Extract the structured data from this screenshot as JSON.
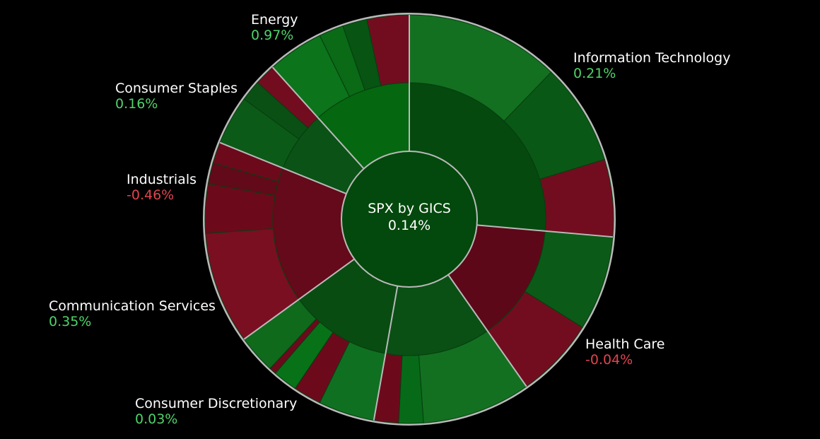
{
  "colors": {
    "background": "#000000",
    "border": "#b9b9b9",
    "positive_label": "#4fd36a",
    "negative_label": "#e0434f",
    "text": "#ffffff"
  },
  "chart_data": {
    "type": "sunburst",
    "center": {
      "label": "SPX by GICS",
      "value": "0.14%"
    },
    "sectors": [
      {
        "name": "Information Technology",
        "change": "0.21%",
        "direction": "up",
        "start_deg": 0,
        "end_deg": 95,
        "inner_color": "#05490f",
        "children": [
          {
            "start_deg": 0,
            "end_deg": 44,
            "color": "#137020"
          },
          {
            "start_deg": 44,
            "end_deg": 73,
            "color": "#0a5815"
          },
          {
            "start_deg": 73,
            "end_deg": 95,
            "color": "#720d1f"
          }
        ]
      },
      {
        "name": "Health Care",
        "change": "-0.04%",
        "direction": "down",
        "start_deg": 95,
        "end_deg": 145,
        "inner_color": "#5c0818",
        "children": [
          {
            "start_deg": 95,
            "end_deg": 122,
            "color": "#0c5a17"
          },
          {
            "start_deg": 122,
            "end_deg": 145,
            "color": "#720d1f"
          }
        ]
      },
      {
        "name": "Consumer Discretionary",
        "change": "0.03%",
        "direction": "up",
        "start_deg": 145,
        "end_deg": 190,
        "inner_color": "#0a5014",
        "children": [
          {
            "start_deg": 145,
            "end_deg": 176,
            "color": "#137020"
          },
          {
            "start_deg": 176,
            "end_deg": 183,
            "color": "#076a18"
          },
          {
            "start_deg": 183,
            "end_deg": 190,
            "color": "#6c0a1c"
          }
        ]
      },
      {
        "name": "Communication Services",
        "change": "0.35%",
        "direction": "up",
        "start_deg": 190,
        "end_deg": 234,
        "inner_color": "#084c11",
        "children": [
          {
            "start_deg": 190,
            "end_deg": 206,
            "color": "#107021"
          },
          {
            "start_deg": 206,
            "end_deg": 214,
            "color": "#6c0a1c"
          },
          {
            "start_deg": 214,
            "end_deg": 221,
            "color": "#087218"
          },
          {
            "start_deg": 221,
            "end_deg": 223,
            "color": "#6c0a1c"
          },
          {
            "start_deg": 223,
            "end_deg": 234,
            "color": "#0f6a1c"
          }
        ]
      },
      {
        "name": "Industrials",
        "change": "-0.46%",
        "direction": "down",
        "start_deg": 234,
        "end_deg": 292,
        "inner_color": "#640a1a",
        "children": [
          {
            "start_deg": 234,
            "end_deg": 266,
            "color": "#7a0f22"
          },
          {
            "start_deg": 266,
            "end_deg": 280,
            "color": "#6c0a1c"
          },
          {
            "start_deg": 280,
            "end_deg": 286,
            "color": "#620a19"
          },
          {
            "start_deg": 286,
            "end_deg": 292,
            "color": "#6c0a1c"
          }
        ]
      },
      {
        "name": "Consumer Staples",
        "change": "0.16%",
        "direction": "up",
        "start_deg": 292,
        "end_deg": 318,
        "inner_color": "#0a5216",
        "children": [
          {
            "start_deg": 292,
            "end_deg": 306,
            "color": "#0c5a17"
          },
          {
            "start_deg": 306,
            "end_deg": 312,
            "color": "#0a5014"
          },
          {
            "start_deg": 312,
            "end_deg": 318,
            "color": "#720d1f"
          }
        ]
      },
      {
        "name": "Energy",
        "change": "0.97%",
        "direction": "up",
        "start_deg": 318,
        "end_deg": 360,
        "inner_color": "#05670f",
        "children": [
          {
            "start_deg": 318,
            "end_deg": 334,
            "color": "#0c741b"
          },
          {
            "start_deg": 334,
            "end_deg": 341,
            "color": "#0a6a16"
          },
          {
            "start_deg": 341,
            "end_deg": 348,
            "color": "#075413"
          },
          {
            "start_deg": 348,
            "end_deg": 360,
            "color": "#720d1f"
          }
        ]
      }
    ]
  }
}
